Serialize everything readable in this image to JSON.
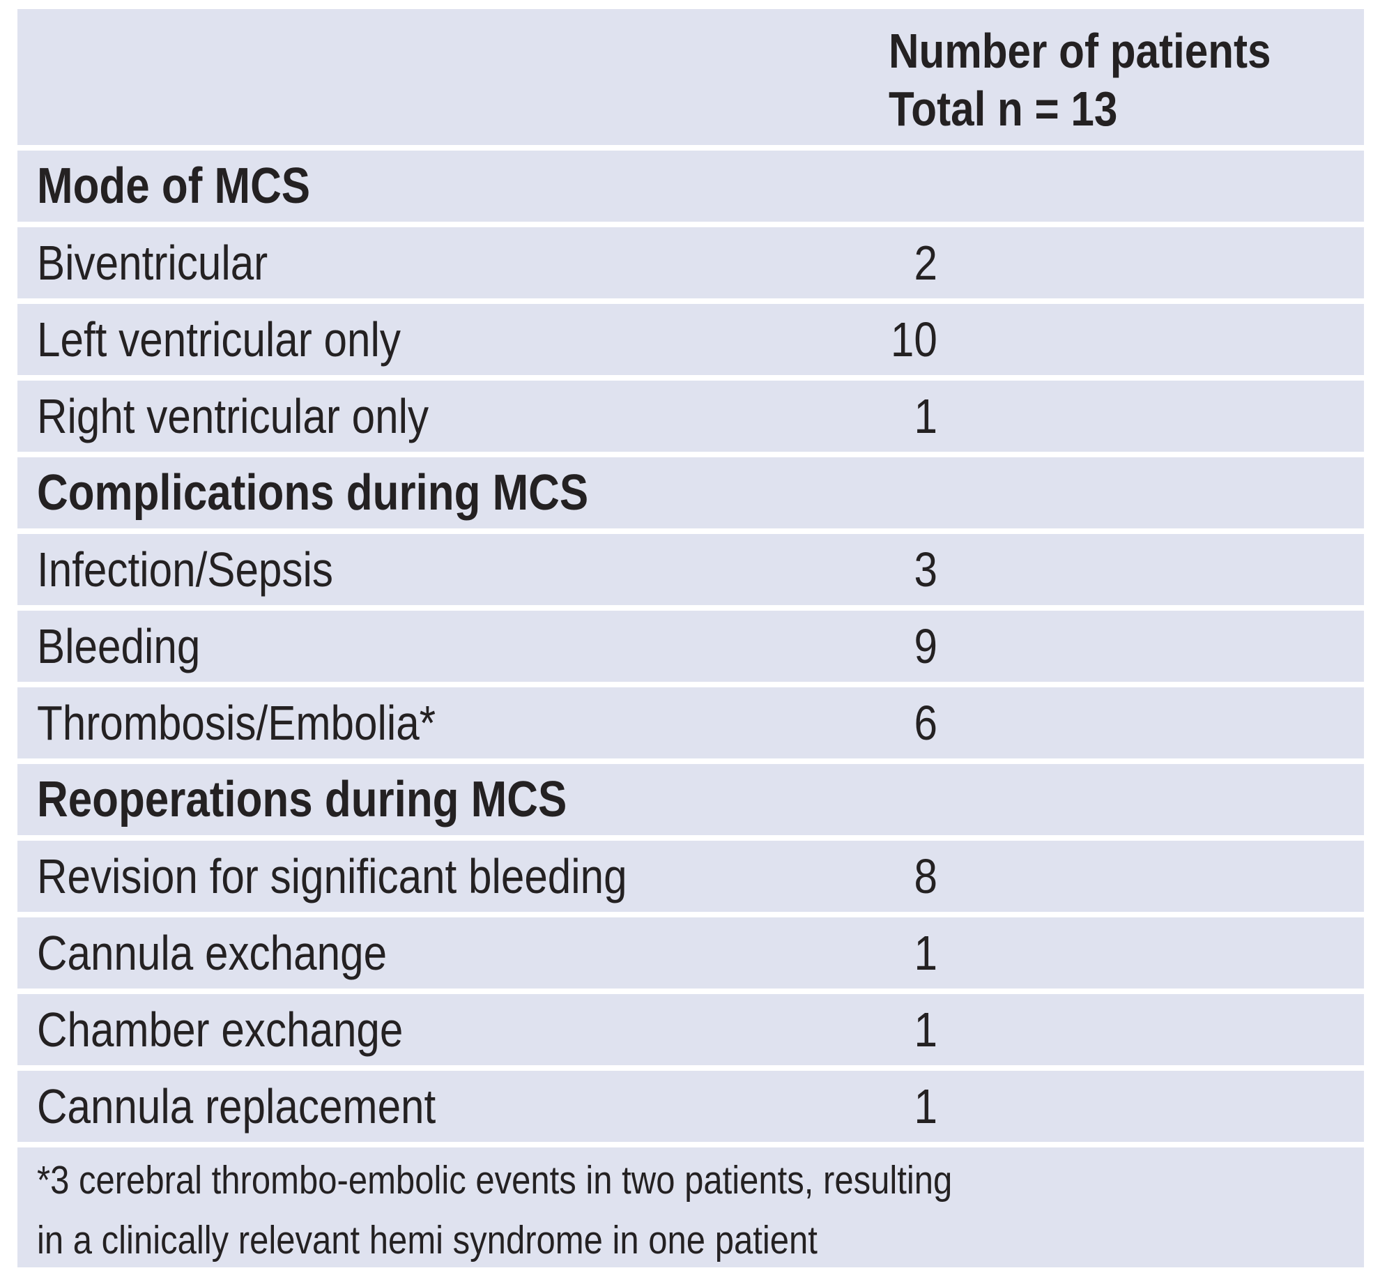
{
  "table": {
    "header": {
      "line1": "Number of patients",
      "line2": "Total n = 13"
    },
    "sections": [
      {
        "title": "Mode of MCS",
        "rows": [
          {
            "label": "Biventricular",
            "value": "2"
          },
          {
            "label": "Left ventricular only",
            "value": "10"
          },
          {
            "label": "Right ventricular only",
            "value": "1"
          }
        ]
      },
      {
        "title": "Complications during MCS",
        "rows": [
          {
            "label": "Infection/Sepsis",
            "value": "3"
          },
          {
            "label": "Bleeding",
            "value": "9"
          },
          {
            "label": "Thrombosis/Embolia*",
            "value": "6"
          }
        ]
      },
      {
        "title": "Reoperations during MCS",
        "rows": [
          {
            "label": "Revision for significant bleeding",
            "value": "8"
          },
          {
            "label": "Cannula exchange",
            "value": "1"
          },
          {
            "label": "Chamber exchange",
            "value": "1"
          },
          {
            "label": "Cannula replacement",
            "value": "1"
          }
        ]
      }
    ],
    "footnote": {
      "line1": "*3 cerebral thrombo-embolic events in two patients, resulting",
      "line2": "in a clinically relevant hemi syndrome in one patient"
    }
  },
  "colors": {
    "panel_bg": "#dfe2ef",
    "separator_line": "#ffffff",
    "text": "#242122"
  }
}
